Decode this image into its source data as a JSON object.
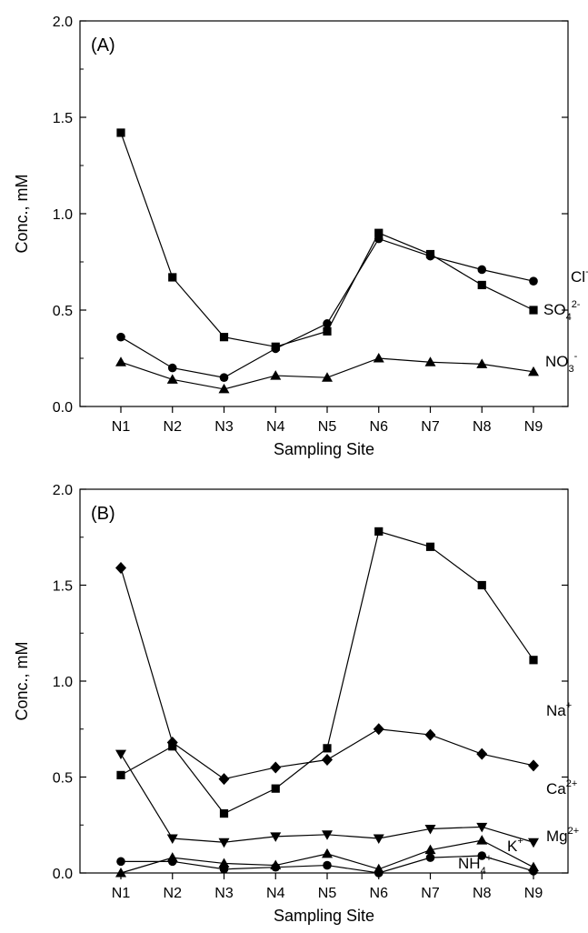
{
  "chart_data": [
    {
      "type": "line",
      "panel_label": "(A)",
      "xlabel": "Sampling Site",
      "ylabel": "Conc., mM",
      "categories": [
        "N1",
        "N2",
        "N3",
        "N4",
        "N5",
        "N6",
        "N7",
        "N8",
        "N9"
      ],
      "ylim": [
        0,
        2.0
      ],
      "yticks": [
        "0.0",
        "0.5",
        "1.0",
        "1.5",
        "2.0"
      ],
      "grid": false,
      "legend": "inline labels at right end of each series",
      "series": [
        {
          "name": "Cl-",
          "label_main": "Cl",
          "label_sup": "-",
          "label_sub": "",
          "label_tail": "",
          "marker": "circle",
          "values": [
            0.36,
            0.2,
            0.15,
            0.3,
            0.43,
            0.87,
            0.78,
            0.71,
            0.65
          ]
        },
        {
          "name": "SO42-",
          "label_main": "SO",
          "label_sup": "2-",
          "label_sub": "4",
          "label_tail": "",
          "marker": "square",
          "values": [
            1.42,
            0.67,
            0.36,
            0.31,
            0.39,
            0.9,
            0.79,
            0.63,
            0.5
          ]
        },
        {
          "name": "NO3-",
          "label_main": "NO",
          "label_sup": "-",
          "label_sub": "3",
          "label_tail": "",
          "marker": "triangle",
          "values": [
            0.23,
            0.14,
            0.09,
            0.16,
            0.15,
            0.25,
            0.23,
            0.22,
            0.18
          ]
        }
      ]
    },
    {
      "type": "line",
      "panel_label": "(B)",
      "xlabel": "Sampling Site",
      "ylabel": "Conc., mM",
      "categories": [
        "N1",
        "N2",
        "N3",
        "N4",
        "N5",
        "N6",
        "N7",
        "N8",
        "N9"
      ],
      "ylim": [
        0,
        2.0
      ],
      "yticks": [
        "0.0",
        "0.5",
        "1.0",
        "1.5",
        "2.0"
      ],
      "grid": false,
      "legend": "inline labels at right end of each series",
      "series": [
        {
          "name": "Na+",
          "label_main": "Na",
          "label_sup": "+",
          "label_sub": "",
          "label_tail": "",
          "marker": "square",
          "values": [
            0.51,
            0.66,
            0.31,
            0.44,
            0.65,
            1.78,
            1.7,
            1.5,
            1.11
          ]
        },
        {
          "name": "Ca2+",
          "label_main": "Ca",
          "label_sup": "2+",
          "label_sub": "",
          "label_tail": "",
          "marker": "diamond",
          "values": [
            1.59,
            0.68,
            0.49,
            0.55,
            0.59,
            0.75,
            0.72,
            0.62,
            0.56
          ]
        },
        {
          "name": "Mg2+",
          "label_main": "Mg",
          "label_sup": "2+",
          "label_sub": "",
          "label_tail": "",
          "marker": "triangle-down",
          "values": [
            0.62,
            0.18,
            0.16,
            0.19,
            0.2,
            0.18,
            0.23,
            0.24,
            0.16
          ]
        },
        {
          "name": "K+",
          "label_main": "K",
          "label_sup": "+",
          "label_sub": "",
          "label_tail": "",
          "marker": "triangle",
          "values": [
            0.0,
            0.08,
            0.05,
            0.04,
            0.1,
            0.02,
            0.12,
            0.17,
            0.03
          ]
        },
        {
          "name": "NH4+",
          "label_main": "NH",
          "label_sup": "+",
          "label_sub": "4",
          "label_tail": "",
          "marker": "circle",
          "values": [
            0.06,
            0.06,
            0.02,
            0.03,
            0.04,
            0.0,
            0.08,
            0.09,
            0.01
          ]
        }
      ]
    }
  ]
}
